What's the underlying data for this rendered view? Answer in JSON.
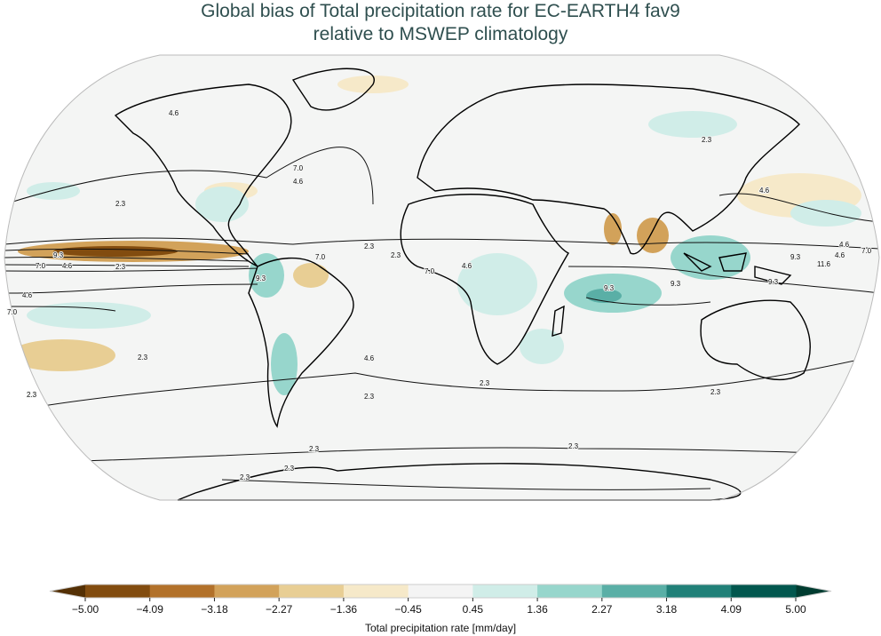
{
  "title": {
    "line1": "Global bias of Total precipitation rate for EC-EARTH4 fav9",
    "line2": "relative to MSWEP climatology"
  },
  "map": {
    "projection": "Robinson",
    "contour_levels": [
      "2.3",
      "4.6",
      "7.0",
      "9.3",
      "11.6"
    ],
    "contour_labels": [
      "4.6",
      "2.3",
      "7.0",
      "4.6",
      "2.3",
      "9.3",
      "7.0",
      "4.6",
      "2.3",
      "4.6",
      "7.0",
      "9.3",
      "7.0",
      "2.3",
      "7.0",
      "4.6",
      "9.3",
      "9.3",
      "2.3",
      "4.6",
      "4.6",
      "4.6",
      "7.0",
      "9.3",
      "11.6",
      "9.3",
      "2.3",
      "2.3",
      "2.3",
      "2.3",
      "4.6",
      "2.3",
      "2.3",
      "2.3",
      "2.3",
      "2.3"
    ]
  },
  "colorbar": {
    "label": "Total precipitation rate [mm/day]",
    "ticks": [
      "−5.00",
      "−4.09",
      "−3.18",
      "−2.27",
      "−1.36",
      "−0.45",
      "0.45",
      "1.36",
      "2.27",
      "3.18",
      "4.09",
      "5.00"
    ],
    "colors": [
      "#824c0f",
      "#b2712a",
      "#d2a25a",
      "#e8ce94",
      "#f6e9c9",
      "#f4f4f4",
      "#d0ede8",
      "#97d6cc",
      "#5aafa6",
      "#218078",
      "#02574e"
    ],
    "extend_low_color": "#543005",
    "extend_high_color": "#003c30"
  }
}
